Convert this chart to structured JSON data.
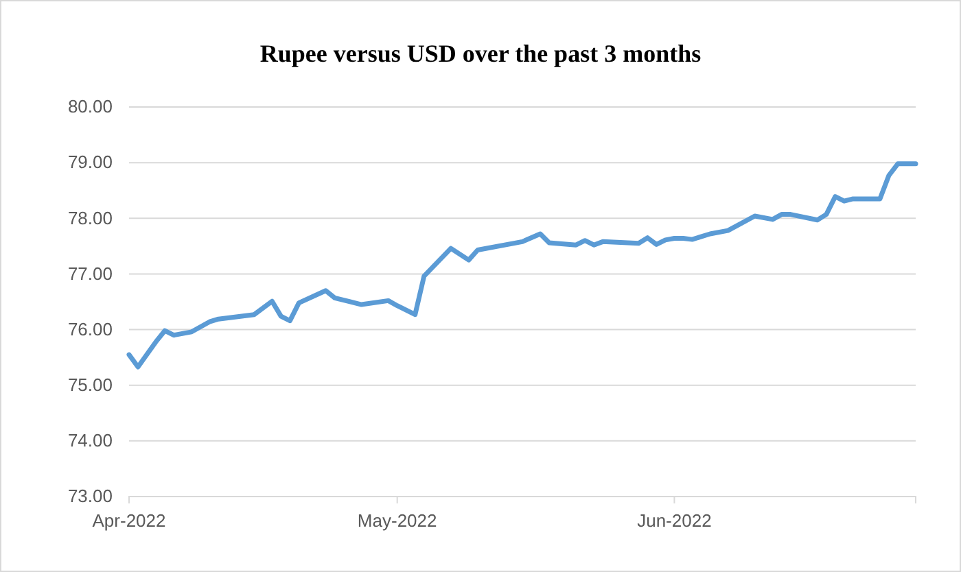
{
  "chart_data": {
    "type": "line",
    "title": "Rupee versus USD over the past 3 months",
    "x": [
      "2022-04-01",
      "2022-04-02",
      "2022-04-04",
      "2022-04-05",
      "2022-04-06",
      "2022-04-08",
      "2022-04-10",
      "2022-04-11",
      "2022-04-15",
      "2022-04-17",
      "2022-04-18",
      "2022-04-19",
      "2022-04-20",
      "2022-04-23",
      "2022-04-24",
      "2022-04-27",
      "2022-04-30",
      "2022-05-01",
      "2022-05-03",
      "2022-05-04",
      "2022-05-07",
      "2022-05-09",
      "2022-05-10",
      "2022-05-15",
      "2022-05-17",
      "2022-05-18",
      "2022-05-21",
      "2022-05-22",
      "2022-05-23",
      "2022-05-24",
      "2022-05-28",
      "2022-05-29",
      "2022-05-30",
      "2022-05-31",
      "2022-06-01",
      "2022-06-02",
      "2022-06-03",
      "2022-06-05",
      "2022-06-07",
      "2022-06-10",
      "2022-06-12",
      "2022-06-13",
      "2022-06-14",
      "2022-06-17",
      "2022-06-18",
      "2022-06-19",
      "2022-06-20",
      "2022-06-21",
      "2022-06-24",
      "2022-06-25",
      "2022-06-26",
      "2022-06-28"
    ],
    "series": [
      {
        "color": "#5b9bd5",
        "values": [
          75.55,
          75.33,
          75.78,
          75.98,
          75.9,
          75.96,
          76.14,
          76.19,
          76.27,
          76.51,
          76.24,
          76.16,
          76.48,
          76.7,
          76.57,
          76.45,
          76.52,
          76.43,
          76.27,
          76.96,
          77.46,
          77.25,
          77.43,
          77.58,
          77.72,
          77.56,
          77.52,
          77.6,
          77.52,
          77.58,
          77.55,
          77.65,
          77.53,
          77.61,
          77.64,
          77.64,
          77.62,
          77.72,
          77.78,
          78.04,
          77.98,
          78.07,
          78.07,
          77.97,
          78.07,
          78.39,
          78.31,
          78.35,
          78.35,
          78.77,
          78.98,
          78.98
        ]
      }
    ],
    "xlim": [
      "2022-04-01",
      "2022-06-28"
    ],
    "xticks": [
      {
        "value": "2022-04-01",
        "label": "Apr-2022"
      },
      {
        "value": "2022-05-01",
        "label": "May-2022"
      },
      {
        "value": "2022-06-01",
        "label": "Jun-2022"
      }
    ],
    "ylim": [
      73,
      80
    ],
    "yticks": [
      {
        "value": 73,
        "label": "73.00"
      },
      {
        "value": 74,
        "label": "74.00"
      },
      {
        "value": 75,
        "label": "75.00"
      },
      {
        "value": 76,
        "label": "76.00"
      },
      {
        "value": 77,
        "label": "77.00"
      },
      {
        "value": 78,
        "label": "78.00"
      },
      {
        "value": 79,
        "label": "79.00"
      },
      {
        "value": 80,
        "label": "80.00"
      }
    ],
    "grid": "y",
    "marker": "none",
    "line_style": "solid"
  }
}
